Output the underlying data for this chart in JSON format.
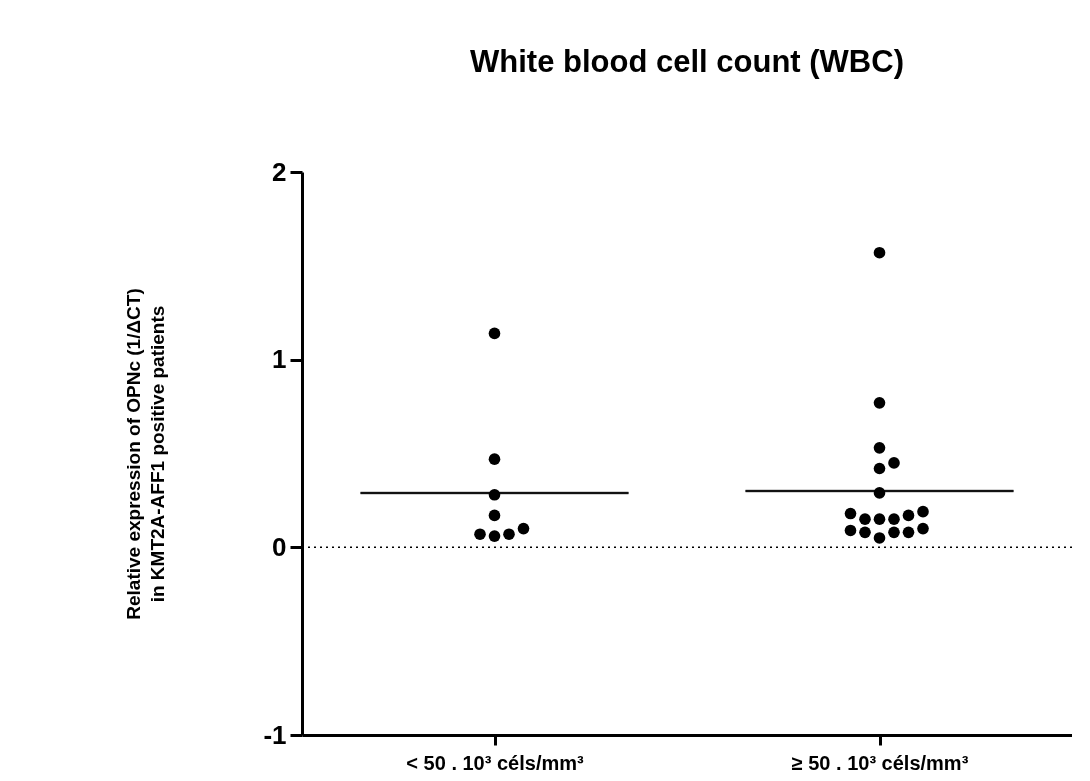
{
  "chart_data": {
    "type": "scatter",
    "title": "White blood cell count (WBC)",
    "ylabel": "Relative expression of OPNc (1/ΔCT)\nin KMT2A-AFF1 positive patients",
    "categories": [
      "< 50 . 10³ céls/mm³",
      "≥ 50 . 10³ céls/mm³"
    ],
    "ylim": [
      -1,
      2
    ],
    "yticks": [
      -1,
      0,
      1,
      2
    ],
    "grid": false,
    "marker": "circle",
    "series": [
      {
        "type": "scatter",
        "color": "#000000",
        "x": [
          "< 50 . 10³ céls/mm³",
          "< 50 . 10³ céls/mm³",
          "< 50 . 10³ céls/mm³",
          "< 50 . 10³ céls/mm³",
          "< 50 . 10³ céls/mm³",
          "< 50 . 10³ céls/mm³",
          "< 50 . 10³ céls/mm³",
          "< 50 . 10³ céls/mm³",
          "≥ 50 . 10³ céls/mm³",
          "≥ 50 . 10³ céls/mm³",
          "≥ 50 . 10³ céls/mm³",
          "≥ 50 . 10³ céls/mm³",
          "≥ 50 . 10³ céls/mm³",
          "≥ 50 . 10³ céls/mm³",
          "≥ 50 . 10³ céls/mm³",
          "≥ 50 . 10³ céls/mm³",
          "≥ 50 . 10³ céls/mm³",
          "≥ 50 . 10³ céls/mm³",
          "≥ 50 . 10³ céls/mm³",
          "≥ 50 . 10³ céls/mm³",
          "≥ 50 . 10³ céls/mm³",
          "≥ 50 . 10³ céls/mm³",
          "≥ 50 . 10³ céls/mm³",
          "≥ 50 . 10³ céls/mm³",
          "≥ 50 . 10³ céls/mm³",
          "≥ 50 . 10³ céls/mm³"
        ],
        "values": [
          1.14,
          0.47,
          0.28,
          0.17,
          0.07,
          0.06,
          0.07,
          0.1,
          1.57,
          0.77,
          0.53,
          0.45,
          0.42,
          0.29,
          0.19,
          0.17,
          0.15,
          0.15,
          0.15,
          0.18,
          0.09,
          0.08,
          0.05,
          0.08,
          0.08,
          0.1
        ]
      },
      {
        "type": "box",
        "color": "#000000",
        "boxes": [
          {
            "low": 0.29,
            "q1": 0.29,
            "median": 0.29,
            "q3": 0.29,
            "high": 0.29
          },
          {
            "low": 0.3,
            "q1": 0.3,
            "median": 0.3,
            "q3": 0.3,
            "high": 0.3
          }
        ]
      }
    ],
    "ref_lines": [
      {
        "axis": "y",
        "value": 0,
        "line_style": "dotted",
        "color": "#000000"
      }
    ]
  }
}
